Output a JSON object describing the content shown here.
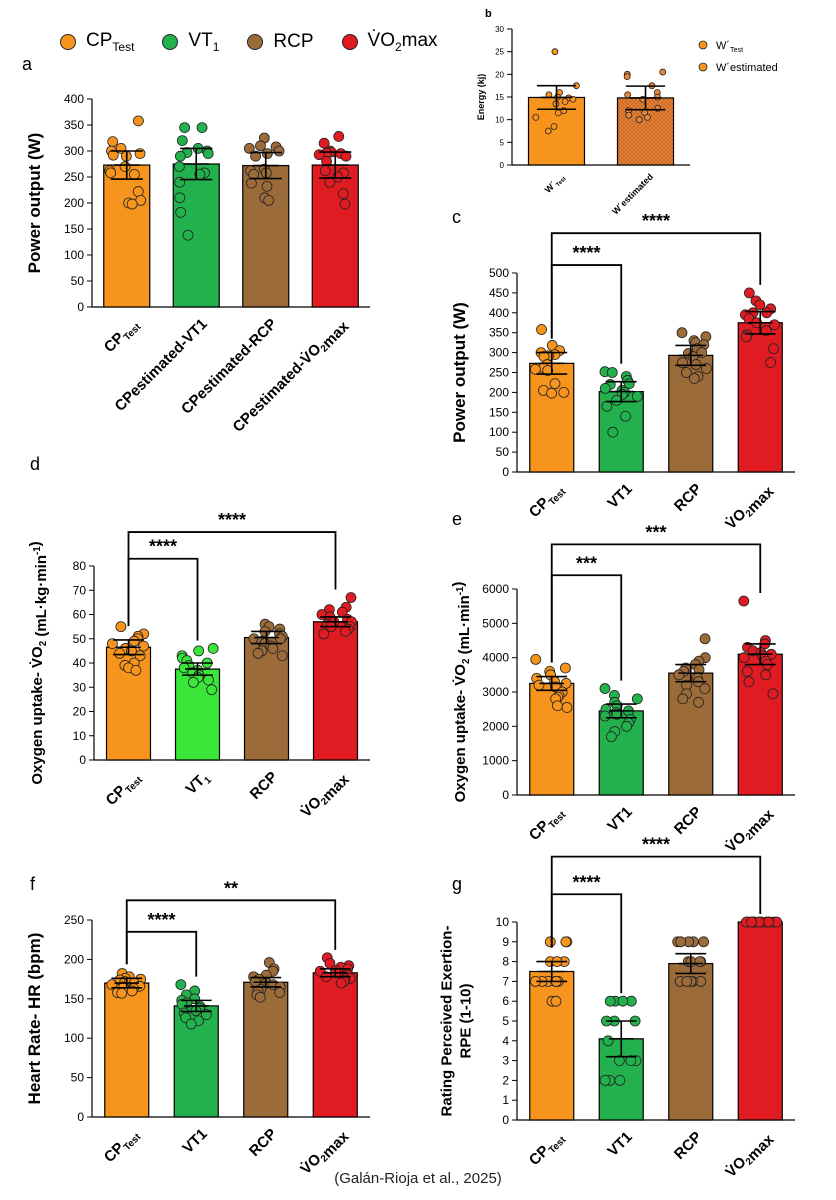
{
  "legend": [
    {
      "label": "CP",
      "sub": "Test",
      "sup": "",
      "color": "#f7941d"
    },
    {
      "label": "VT",
      "sub": "1",
      "sup": "",
      "color": "#22b14c"
    },
    {
      "label": "RCP",
      "sub": "",
      "sup": "",
      "color": "#9c6b3a"
    },
    {
      "label": "V̇O",
      "sub": "2",
      "sup": "max",
      "color": "#e11b22"
    }
  ],
  "citation": "(Galán-Rioja et al., 2025)",
  "chart_data": [
    {
      "id": "a",
      "type": "bar",
      "panel_label": "a",
      "ylabel": "Power output (W)",
      "ylim": [
        0,
        400
      ],
      "yticks": [
        0,
        50,
        100,
        150,
        200,
        250,
        300,
        350,
        400
      ],
      "categories": [
        "CP_Test",
        "CPestimated-VT1",
        "CPestimated-RCP",
        "CPestimated-V̇O2max"
      ],
      "category_labels": [
        [
          {
            "t": "CP",
            "s": ""
          },
          {
            "t": "Test",
            "s": "sub"
          }
        ],
        [
          {
            "t": "CPestimated-VT1",
            "s": ""
          }
        ],
        [
          {
            "t": "CPestimated-RCP",
            "s": ""
          }
        ],
        [
          {
            "t": "CPestimated-V̇O",
            "s": ""
          },
          {
            "t": "2",
            "s": "sub"
          },
          {
            "t": "max",
            "s": ""
          }
        ]
      ],
      "colors": [
        "#f7941d",
        "#22b14c",
        "#9c6b3a",
        "#e11b22"
      ],
      "values": [
        273,
        275,
        272,
        273
      ],
      "errors": [
        27,
        30,
        25,
        25
      ],
      "points": [
        [
          358,
          318,
          305,
          300,
          295,
          292,
          290,
          270,
          262,
          258,
          255,
          222,
          205,
          200,
          198
        ],
        [
          345,
          345,
          320,
          305,
          300,
          297,
          295,
          290,
          270,
          258,
          255,
          240,
          210,
          182,
          138
        ],
        [
          325,
          310,
          308,
          305,
          300,
          295,
          290,
          265,
          262,
          258,
          255,
          238,
          232,
          210,
          205
        ],
        [
          328,
          315,
          300,
          298,
          296,
          295,
          293,
          290,
          280,
          262,
          258,
          250,
          240,
          218,
          198
        ]
      ],
      "brackets": [],
      "rotate_labels": true
    },
    {
      "id": "b",
      "type": "bar",
      "panel_label": "b",
      "ylabel": "Energy (kj)",
      "ylim": [
        0,
        30
      ],
      "yticks": [
        0,
        5,
        10,
        15,
        20,
        25,
        30
      ],
      "categories": [
        "W´Test",
        "W´estimated"
      ],
      "category_labels": [
        [
          {
            "t": "W´",
            "s": ""
          },
          {
            "t": "Test",
            "s": "sub"
          }
        ],
        [
          {
            "t": "W´estimated",
            "s": ""
          }
        ]
      ],
      "colors": [
        "#f7941d",
        "#e8863a"
      ],
      "hatch": [
        false,
        true
      ],
      "values": [
        14.9,
        14.8
      ],
      "errors": [
        2.6,
        2.6
      ],
      "points": [
        [
          25,
          17.5,
          16,
          15.5,
          15,
          14.8,
          14.5,
          14,
          13.5,
          12,
          11.5,
          10.5,
          8.5,
          7.5
        ],
        [
          20.5,
          20,
          19.5,
          17.5,
          16,
          15.5,
          15,
          14.5,
          12.5,
          12,
          11.5,
          11,
          10.5,
          10
        ]
      ],
      "legend": [
        {
          "label": "W´",
          "sub": "Test"
        },
        {
          "label": "W´estimated",
          "sub": ""
        }
      ],
      "brackets": [],
      "rotate_labels": true
    },
    {
      "id": "c",
      "type": "bar",
      "panel_label": "c",
      "ylabel": "Power output (W)",
      "ylim": [
        0,
        500
      ],
      "yticks": [
        0,
        50,
        100,
        150,
        200,
        250,
        300,
        350,
        400,
        450,
        500
      ],
      "categories": [
        "CP_Test",
        "VT1",
        "RCP",
        "V̇O2max"
      ],
      "category_labels": [
        [
          {
            "t": "CP",
            "s": ""
          },
          {
            "t": "Test",
            "s": "sub"
          }
        ],
        [
          {
            "t": "VT1",
            "s": ""
          }
        ],
        [
          {
            "t": "RCP",
            "s": ""
          }
        ],
        [
          {
            "t": "V̇O",
            "s": ""
          },
          {
            "t": "2",
            "s": "sub"
          },
          {
            "t": "max",
            "s": ""
          }
        ]
      ],
      "colors": [
        "#f7941d",
        "#22b14c",
        "#9c6b3a",
        "#e11b22"
      ],
      "values": [
        273,
        202,
        293,
        375
      ],
      "errors": [
        27,
        25,
        25,
        28
      ],
      "points": [
        [
          358,
          318,
          305,
          300,
          295,
          292,
          290,
          270,
          262,
          258,
          255,
          222,
          205,
          200,
          198
        ],
        [
          252,
          250,
          240,
          230,
          222,
          220,
          210,
          205,
          200,
          195,
          190,
          180,
          165,
          140,
          100
        ],
        [
          350,
          340,
          330,
          325,
          320,
          310,
          300,
          298,
          290,
          275,
          270,
          260,
          250,
          240,
          235
        ],
        [
          450,
          430,
          420,
          410,
          400,
          400,
          395,
          385,
          375,
          370,
          355,
          345,
          340,
          310,
          275
        ]
      ],
      "brackets": [
        {
          "from": 0,
          "to": 1,
          "label": "****",
          "y": 520
        },
        {
          "from": 0,
          "to": 3,
          "label": "****",
          "y": 600
        }
      ],
      "rotate_labels": true
    },
    {
      "id": "d",
      "type": "bar",
      "panel_label": "d",
      "ylabel": "Oxygen uptake- V̇O2 (mL·kg·min⁻¹)",
      "ylim": [
        0,
        80
      ],
      "yticks": [
        0,
        10,
        20,
        30,
        40,
        50,
        60,
        70,
        80
      ],
      "ylabel_parts": [
        {
          "t": "Oxygen uptake- V̇O",
          "s": ""
        },
        {
          "t": "2",
          "s": "sub"
        },
        {
          "t": "  (mL·kg·min",
          "s": ""
        },
        {
          "t": "-1",
          "s": "sup"
        },
        {
          "t": ")",
          "s": ""
        }
      ],
      "categories": [
        "CP_Test",
        "VT_1",
        "RCP",
        "V̇O2max"
      ],
      "category_labels": [
        [
          {
            "t": "CP",
            "s": ""
          },
          {
            "t": "Test",
            "s": "sub"
          }
        ],
        [
          {
            "t": "VT",
            "s": ""
          },
          {
            "t": "1",
            "s": "sub"
          }
        ],
        [
          {
            "t": "RCP",
            "s": ""
          }
        ],
        [
          {
            "t": "V̇O",
            "s": ""
          },
          {
            "t": "2",
            "s": "sub"
          },
          {
            "t": "max",
            "s": ""
          }
        ]
      ],
      "colors": [
        "#f7941d",
        "#39e639",
        "#9c6b3a",
        "#e11b22"
      ],
      "values": [
        46.5,
        37.5,
        50.5,
        57
      ],
      "errors": [
        3,
        2.5,
        2.5,
        2
      ],
      "points": [
        [
          55,
          52,
          51,
          50,
          49,
          48,
          47,
          46,
          45,
          44,
          43,
          40,
          39,
          38,
          37
        ],
        [
          46,
          45,
          43,
          42,
          41,
          40,
          39,
          38,
          37,
          36,
          35,
          34,
          33,
          32,
          29
        ],
        [
          56,
          55,
          54,
          53,
          52,
          51,
          50,
          50,
          49,
          48,
          47,
          46,
          45,
          44,
          43
        ],
        [
          67,
          63,
          62,
          61,
          60,
          59,
          58,
          57,
          57,
          56,
          55,
          55,
          54,
          53,
          52
        ]
      ],
      "brackets": [
        {
          "from": 0,
          "to": 1,
          "label": "****",
          "y": 83
        },
        {
          "from": 0,
          "to": 3,
          "label": "****",
          "y": 94
        }
      ],
      "rotate_labels": true
    },
    {
      "id": "e",
      "type": "bar",
      "panel_label": "e",
      "ylabel": "Oxygen uptake- V̇O2 (mL·min⁻¹)",
      "ylim": [
        0,
        6000
      ],
      "yticks": [
        0,
        1000,
        2000,
        3000,
        4000,
        5000,
        6000
      ],
      "ylabel_parts": [
        {
          "t": "Oxygen uptake- V̇O",
          "s": ""
        },
        {
          "t": "2",
          "s": "sub"
        },
        {
          "t": "  (mL·min",
          "s": ""
        },
        {
          "t": "-1",
          "s": "sup"
        },
        {
          "t": ")",
          "s": ""
        }
      ],
      "categories": [
        "CP_Test",
        "VT1",
        "RCP",
        "V̇O2max"
      ],
      "category_labels": [
        [
          {
            "t": "CP",
            "s": ""
          },
          {
            "t": "Test",
            "s": "sub"
          }
        ],
        [
          {
            "t": "VT1",
            "s": ""
          }
        ],
        [
          {
            "t": "RCP",
            "s": ""
          }
        ],
        [
          {
            "t": "V̇O",
            "s": ""
          },
          {
            "t": "2",
            "s": "sub"
          },
          {
            "t": "max",
            "s": ""
          }
        ]
      ],
      "colors": [
        "#f7941d",
        "#22b14c",
        "#9c6b3a",
        "#e11b22"
      ],
      "values": [
        3250,
        2450,
        3550,
        4100
      ],
      "errors": [
        200,
        200,
        250,
        300
      ],
      "points": [
        [
          3950,
          3700,
          3600,
          3500,
          3400,
          3300,
          3250,
          3200,
          3150,
          3000,
          2900,
          2850,
          2800,
          2600,
          2550
        ],
        [
          3100,
          2900,
          2800,
          2700,
          2600,
          2500,
          2450,
          2400,
          2350,
          2300,
          2200,
          2100,
          2000,
          1850,
          1700
        ],
        [
          4550,
          4000,
          3900,
          3800,
          3700,
          3650,
          3600,
          3500,
          3400,
          3300,
          3200,
          3100,
          2950,
          2800,
          2700
        ],
        [
          5650,
          4500,
          4400,
          4300,
          4200,
          4150,
          4100,
          4050,
          4000,
          3900,
          3800,
          3600,
          3500,
          3300,
          2950
        ]
      ],
      "brackets": [
        {
          "from": 0,
          "to": 1,
          "label": "***",
          "y": 6400
        },
        {
          "from": 0,
          "to": 3,
          "label": "***",
          "y": 7300
        }
      ],
      "rotate_labels": true
    },
    {
      "id": "f",
      "type": "bar",
      "panel_label": "f",
      "ylabel": "Heart Rate- HR (bpm)",
      "ylim": [
        0,
        250
      ],
      "yticks": [
        0,
        50,
        100,
        150,
        200,
        250
      ],
      "categories": [
        "CP_Test",
        "VT1",
        "RCP",
        "V̇O2max"
      ],
      "category_labels": [
        [
          {
            "t": "CP",
            "s": ""
          },
          {
            "t": "Test",
            "s": "sub"
          }
        ],
        [
          {
            "t": "VT1",
            "s": ""
          }
        ],
        [
          {
            "t": "RCP",
            "s": ""
          }
        ],
        [
          {
            "t": "V̇O",
            "s": ""
          },
          {
            "t": "2",
            "s": "sub"
          },
          {
            "t": "max",
            "s": ""
          }
        ]
      ],
      "colors": [
        "#f7941d",
        "#22b14c",
        "#9c6b3a",
        "#e11b22"
      ],
      "values": [
        170,
        141,
        171,
        183
      ],
      "errors": [
        6,
        7,
        6,
        5
      ],
      "points": [
        [
          182,
          178,
          176,
          175,
          174,
          172,
          170,
          170,
          168,
          166,
          165,
          163,
          160,
          158,
          157
        ],
        [
          168,
          160,
          155,
          150,
          148,
          145,
          143,
          140,
          138,
          135,
          132,
          130,
          126,
          122,
          118
        ],
        [
          196,
          188,
          185,
          180,
          178,
          175,
          172,
          170,
          168,
          165,
          162,
          160,
          158,
          155,
          152
        ],
        [
          202,
          195,
          192,
          190,
          188,
          186,
          185,
          183,
          182,
          180,
          178,
          176,
          174,
          172,
          170
        ]
      ],
      "brackets": [
        {
          "from": 0,
          "to": 1,
          "label": "****",
          "y": 235
        },
        {
          "from": 0,
          "to": 3,
          "label": "**",
          "y": 275
        }
      ],
      "rotate_labels": true
    },
    {
      "id": "g",
      "type": "bar",
      "panel_label": "g",
      "ylabel": "Rating Perceived Exertion- RPE (1-10)",
      "ylim": [
        0,
        10
      ],
      "yticks": [
        0,
        1,
        2,
        3,
        4,
        5,
        6,
        7,
        8,
        9,
        10
      ],
      "ylabel_lines": [
        "Rating Perceived Exertion-",
        "RPE (1-10)"
      ],
      "categories": [
        "CP_Test",
        "VT1",
        "RCP",
        "V̇O2max"
      ],
      "category_labels": [
        [
          {
            "t": "CP",
            "s": ""
          },
          {
            "t": "Test",
            "s": "sub"
          }
        ],
        [
          {
            "t": "VT1",
            "s": ""
          }
        ],
        [
          {
            "t": "RCP",
            "s": ""
          }
        ],
        [
          {
            "t": "V̇O",
            "s": ""
          },
          {
            "t": "2",
            "s": "sub"
          },
          {
            "t": "max",
            "s": ""
          }
        ]
      ],
      "colors": [
        "#f7941d",
        "#22b14c",
        "#9c6b3a",
        "#e11b22"
      ],
      "values": [
        7.5,
        4.1,
        7.9,
        10
      ],
      "errors": [
        0.5,
        0.9,
        0.5,
        0
      ],
      "points": [
        [
          9,
          9,
          9,
          8,
          8,
          8,
          7,
          7,
          7,
          7,
          7,
          7,
          6,
          6
        ],
        [
          6,
          6,
          6,
          6,
          5,
          5,
          5,
          4,
          3,
          3,
          3,
          2,
          2,
          2
        ],
        [
          9,
          9,
          9,
          9,
          9,
          8,
          8,
          8,
          8,
          7,
          7,
          7,
          7,
          7
        ],
        [
          10,
          10,
          10,
          10,
          10,
          10,
          10,
          10,
          10,
          10,
          10,
          10,
          10,
          10
        ]
      ],
      "brackets": [
        {
          "from": 0,
          "to": 1,
          "label": "****",
          "y": 11.4
        },
        {
          "from": 0,
          "to": 3,
          "label": "****",
          "y": 13.3
        }
      ],
      "rotate_labels": true
    }
  ]
}
